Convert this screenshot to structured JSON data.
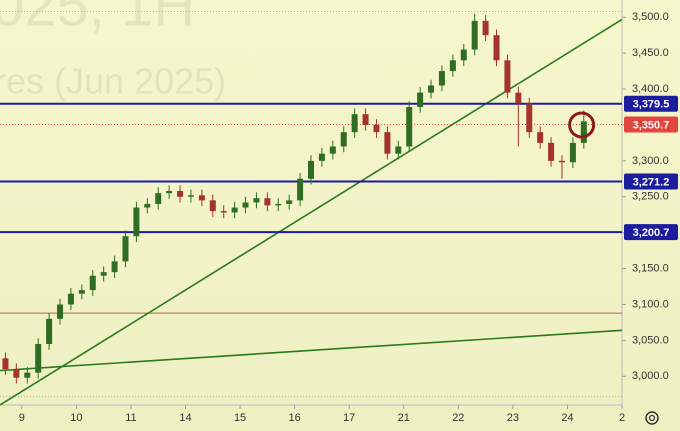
{
  "chart_data": {
    "type": "candlestick",
    "watermark": [
      "025, 1H",
      "res (Jun 2025)"
    ],
    "xlim": [
      -0.4,
      11.0
    ],
    "ylim": [
      2960,
      3524
    ],
    "xticks": [
      {
        "value": 0,
        "label": "9"
      },
      {
        "value": 1,
        "label": "10"
      },
      {
        "value": 2,
        "label": "11"
      },
      {
        "value": 3,
        "label": "14"
      },
      {
        "value": 4,
        "label": "15"
      },
      {
        "value": 5,
        "label": "16"
      },
      {
        "value": 6,
        "label": "17"
      },
      {
        "value": 7,
        "label": "21"
      },
      {
        "value": 8,
        "label": "22"
      },
      {
        "value": 9,
        "label": "23"
      },
      {
        "value": 10,
        "label": "24"
      },
      {
        "value": 11,
        "label": "2"
      }
    ],
    "yticks": [
      {
        "value": 3000,
        "label": "3,000.0"
      },
      {
        "value": 3050,
        "label": "3,050.0"
      },
      {
        "value": 3100,
        "label": "3,100.0"
      },
      {
        "value": 3150,
        "label": "3,150.0"
      },
      {
        "value": 3200,
        "label": "3,200.0"
      },
      {
        "value": 3250,
        "label": "3,250.0"
      },
      {
        "value": 3300,
        "label": "3,300.0"
      },
      {
        "value": 3350,
        "label": "3,350.0"
      },
      {
        "value": 3400,
        "label": "3,400.0"
      },
      {
        "value": 3450,
        "label": "3,450.0"
      },
      {
        "value": 3500,
        "label": "3,500.0"
      }
    ],
    "up_color": "#2f6e22",
    "down_color": "#a3332b",
    "candles": {
      "x": [
        -0.3,
        -0.1,
        0.1,
        0.3,
        0.5,
        0.7,
        0.9,
        1.1,
        1.3,
        1.5,
        1.7,
        1.9,
        2.1,
        2.3,
        2.5,
        2.7,
        2.9,
        3.1,
        3.3,
        3.5,
        3.7,
        3.9,
        4.1,
        4.3,
        4.5,
        4.7,
        4.9,
        5.1,
        5.3,
        5.5,
        5.7,
        5.9,
        6.1,
        6.3,
        6.5,
        6.7,
        6.9,
        7.1,
        7.3,
        7.5,
        7.7,
        7.9,
        8.1,
        8.3,
        8.5,
        8.7,
        8.9,
        9.1,
        9.3,
        9.5,
        9.7,
        9.9,
        10.1,
        10.3
      ],
      "open": [
        3025,
        3010,
        2998,
        3005,
        3045,
        3080,
        3100,
        3115,
        3120,
        3140,
        3145,
        3160,
        3195,
        3235,
        3240,
        3255,
        3258,
        3250,
        3252,
        3245,
        3230,
        3228,
        3235,
        3242,
        3248,
        3238,
        3240,
        3245,
        3275,
        3300,
        3310,
        3320,
        3340,
        3365,
        3350,
        3340,
        3310,
        3320,
        3375,
        3395,
        3405,
        3425,
        3440,
        3455,
        3495,
        3475,
        3440,
        3395,
        3380,
        3340,
        3325,
        3300,
        3298,
        3325
      ],
      "high": [
        3033,
        3018,
        3013,
        3053,
        3088,
        3108,
        3123,
        3128,
        3148,
        3153,
        3168,
        3203,
        3243,
        3248,
        3263,
        3266,
        3266,
        3260,
        3260,
        3253,
        3238,
        3243,
        3250,
        3256,
        3256,
        3248,
        3253,
        3283,
        3308,
        3318,
        3328,
        3348,
        3373,
        3373,
        3358,
        3348,
        3328,
        3383,
        3403,
        3413,
        3433,
        3448,
        3463,
        3505,
        3503,
        3483,
        3448,
        3403,
        3388,
        3348,
        3333,
        3308,
        3333,
        3370
      ],
      "low": [
        3002,
        2990,
        2990,
        2997,
        3037,
        3072,
        3092,
        3107,
        3112,
        3132,
        3137,
        3152,
        3187,
        3227,
        3232,
        3247,
        3242,
        3242,
        3237,
        3222,
        3220,
        3220,
        3227,
        3234,
        3230,
        3230,
        3232,
        3237,
        3267,
        3292,
        3302,
        3312,
        3332,
        3342,
        3332,
        3302,
        3302,
        3312,
        3367,
        3387,
        3397,
        3417,
        3432,
        3447,
        3467,
        3432,
        3387,
        3320,
        3332,
        3317,
        3292,
        3275,
        3290,
        3317
      ],
      "close": [
        3010,
        2998,
        3005,
        3045,
        3080,
        3100,
        3115,
        3120,
        3140,
        3145,
        3160,
        3195,
        3235,
        3240,
        3255,
        3258,
        3250,
        3252,
        3245,
        3230,
        3228,
        3235,
        3242,
        3248,
        3238,
        3240,
        3245,
        3275,
        3300,
        3310,
        3320,
        3340,
        3365,
        3350,
        3340,
        3310,
        3320,
        3375,
        3395,
        3405,
        3425,
        3440,
        3455,
        3495,
        3475,
        3440,
        3395,
        3380,
        3340,
        3325,
        3300,
        3298,
        3325,
        3355
      ]
    },
    "levels": [
      {
        "value": 3379.5,
        "label": "3,379.5",
        "color": "#1c1c9e"
      },
      {
        "value": 3350.7,
        "label": "3,350.7",
        "color": "#e0463e"
      },
      {
        "value": 3271.2,
        "label": "3,271.2",
        "color": "#1c1c9e"
      },
      {
        "value": 3200.7,
        "label": "3,200.7",
        "color": "#1c1c9e"
      }
    ],
    "plain_lines": [
      {
        "value": 3088,
        "color": "#b5653e"
      },
      {
        "value": 3508,
        "color": "#b9b98a"
      },
      {
        "value": 2972,
        "color": "#b9b98a"
      }
    ],
    "trendlines": [
      {
        "x": [
          -0.4,
          11.0
        ],
        "y": [
          2960,
          3497
        ],
        "color": "#2a7a1e"
      },
      {
        "x": [
          -0.4,
          11.0
        ],
        "y": [
          3008,
          3064
        ],
        "color": "#2a7a1e"
      }
    ],
    "circle": {
      "x": 10.26,
      "y": 3350,
      "color": "#8b1a1a"
    }
  }
}
